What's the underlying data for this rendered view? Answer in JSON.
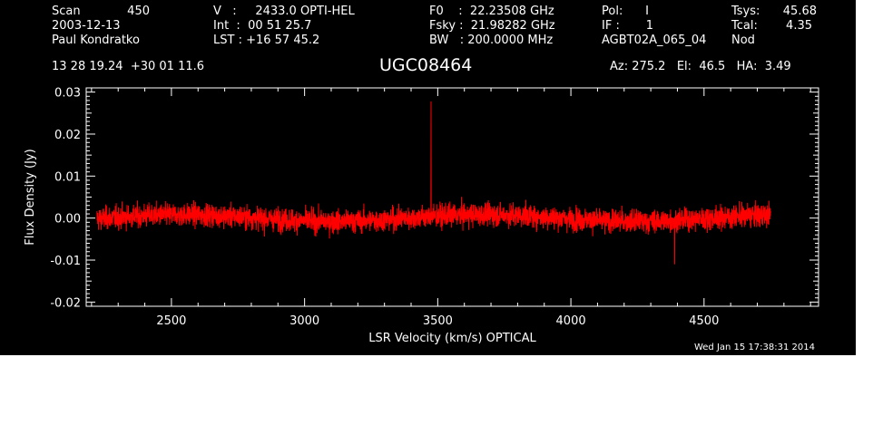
{
  "header": {
    "col1": [
      {
        "label": "Scan",
        "value": "450"
      },
      {
        "label": "2003-12-13",
        "value": ""
      },
      {
        "label": "Paul Kondratko",
        "value": ""
      }
    ],
    "col2": [
      "V   :     2433.0 OPTI-HEL",
      "Int  :  00 51 25.7",
      "LST : +16 57 45.2"
    ],
    "col3": [
      "F0    :  22.23508 GHz",
      "Fsky :  21.98282 GHz",
      "BW   : 200.0000 MHz"
    ],
    "col4": [
      "Pol:      I",
      "IF :       1",
      "AGBT02A_065_04"
    ],
    "col5": [
      {
        "label": "Tsys:",
        "value": "45.68"
      },
      {
        "label": "Tcal:",
        "value": "4.35"
      },
      {
        "label": "Nod",
        "value": ""
      }
    ],
    "coords": "13 28 19.24  +30 01 11.6",
    "object": "UGC08464",
    "azel": "Az: 275.2   El:  46.5   HA:  3.49"
  },
  "footer": {
    "timestamp": "Wed Jan 15 17:38:31 2014"
  },
  "colors": {
    "background": "#000000",
    "foreground": "#ffffff",
    "trace": "#ff0000"
  },
  "chart_data": {
    "type": "line",
    "title": "UGC08464",
    "xlabel": "LSR Velocity (km/s) OPTICAL",
    "ylabel": "Flux Density (Jy)",
    "xlim": [
      2180,
      4930
    ],
    "ylim": [
      -0.021,
      0.031
    ],
    "xticks": [
      2500,
      3000,
      3500,
      4000,
      4500
    ],
    "xtick_labels": [
      "2500",
      "3000",
      "3500",
      "4000",
      "4500"
    ],
    "yticks": [
      -0.02,
      -0.01,
      0.0,
      0.01,
      0.02,
      0.03
    ],
    "ytick_labels": [
      "-0.02",
      "-0.01",
      "0.00",
      "0.01",
      "0.02",
      "0.03"
    ],
    "grid": false,
    "series": [
      {
        "color": "#ff0000",
        "x_range": [
          2220,
          4750
        ],
        "baseline": 0.0,
        "noise_rms": 0.0027,
        "features": [
          {
            "x": 3475,
            "y": 0.0278,
            "kind": "spike"
          },
          {
            "x": 4390,
            "y": -0.011,
            "kind": "spike"
          }
        ]
      }
    ]
  }
}
